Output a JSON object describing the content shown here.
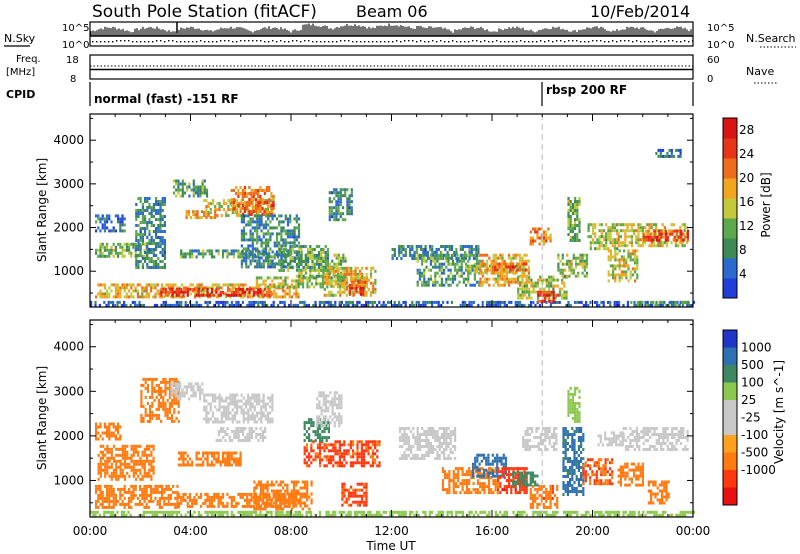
{
  "header": {
    "station": "South Pole Station (fitACF)",
    "beam": "Beam 06",
    "date": "10/Feb/2014"
  },
  "top_panels": {
    "nsky_label": "N.Sky",
    "nsky_top": "10^5",
    "nsky_bottom": "10^0",
    "nsearch_label": "N.Search",
    "nsearch_top": "10^5",
    "nsearch_bottom": "10^0",
    "freq_label_1": "Freq.",
    "freq_label_2": "[MHz]",
    "freq_top": "18",
    "freq_bottom": "8",
    "nave_label": "Nave",
    "nave_top": "60",
    "nave_bottom": "0",
    "cpid_label": "CPID",
    "cpid_1": "normal (fast) -151 RF",
    "cpid_2": "rbsp 200 RF"
  },
  "colors": {
    "power": [
      "#1f3fd8",
      "#2a6ad0",
      "#3e8a56",
      "#5ca84a",
      "#c4c93c",
      "#f2a51e",
      "#ef6d1a",
      "#e8351a",
      "#d91414"
    ],
    "velocity": [
      "#2036c8",
      "#2f70b0",
      "#3d8860",
      "#8bc850",
      "#c8c8c8",
      "#c8c8c8",
      "#ffa020",
      "#ff7a10",
      "#ff3810",
      "#e81010"
    ],
    "midline": "#c8c8c8"
  },
  "chart_data": [
    {
      "type": "heatmap",
      "name": "power",
      "xlabel": "Time UT",
      "ylabel": "Slant Range [km]",
      "xlim": [
        0,
        24
      ],
      "ylim": [
        180,
        4600
      ],
      "x_ticks": [
        "00:00",
        "04:00",
        "08:00",
        "12:00",
        "16:00",
        "20:00",
        "00:00"
      ],
      "y_ticks": [
        1000,
        2000,
        3000,
        4000
      ],
      "colorbar": {
        "label": "Power [dB]",
        "ticks": [
          4,
          8,
          12,
          16,
          20,
          24,
          28
        ],
        "range": [
          0,
          30
        ]
      },
      "cpid_change_hour": 18.0,
      "regions": [
        {
          "t": [
            0.0,
            24.0
          ],
          "r": [
            200,
            320
          ],
          "v": 4
        },
        {
          "t": [
            0.2,
            8.3
          ],
          "r": [
            420,
            720
          ],
          "v": 18
        },
        {
          "t": [
            2.8,
            7.2
          ],
          "r": [
            480,
            620
          ],
          "v": 26
        },
        {
          "t": [
            6.6,
            11.0
          ],
          "r": [
            640,
            880
          ],
          "v": 14
        },
        {
          "t": [
            8.2,
            10.2
          ],
          "r": [
            900,
            1400
          ],
          "v": 12
        },
        {
          "t": [
            9.3,
            11.4
          ],
          "r": [
            450,
            1100
          ],
          "v": 17
        },
        {
          "t": [
            10.3,
            11.0
          ],
          "r": [
            480,
            780
          ],
          "v": 24
        },
        {
          "t": [
            0.2,
            2.3
          ],
          "r": [
            1350,
            1650
          ],
          "v": 12
        },
        {
          "t": [
            0.2,
            1.4
          ],
          "r": [
            1900,
            2300
          ],
          "v": 6
        },
        {
          "t": [
            1.8,
            3.0
          ],
          "r": [
            1100,
            2700
          ],
          "v": 8
        },
        {
          "t": [
            3.3,
            4.7
          ],
          "r": [
            2700,
            3100
          ],
          "v": 10
        },
        {
          "t": [
            3.5,
            8.0
          ],
          "r": [
            1300,
            1500
          ],
          "v": 10
        },
        {
          "t": [
            4.5,
            7.3
          ],
          "r": [
            2250,
            2650
          ],
          "v": 16
        },
        {
          "t": [
            5.6,
            7.3
          ],
          "r": [
            2300,
            2950
          ],
          "v": 22
        },
        {
          "t": [
            3.8,
            5.0
          ],
          "r": [
            2200,
            2400
          ],
          "v": 18
        },
        {
          "t": [
            6.0,
            8.3
          ],
          "r": [
            1100,
            2300
          ],
          "v": 8
        },
        {
          "t": [
            7.5,
            9.5
          ],
          "r": [
            1000,
            1600
          ],
          "v": 10
        },
        {
          "t": [
            9.5,
            10.4
          ],
          "r": [
            2200,
            2900
          ],
          "v": 8
        },
        {
          "t": [
            12.0,
            15.5
          ],
          "r": [
            1300,
            1600
          ],
          "v": 8
        },
        {
          "t": [
            13.0,
            15.5
          ],
          "r": [
            700,
            1400
          ],
          "v": 10
        },
        {
          "t": [
            15.0,
            17.2
          ],
          "r": [
            950,
            1150
          ],
          "v": 14
        },
        {
          "t": [
            15.5,
            17.5
          ],
          "r": [
            700,
            1400
          ],
          "v": 18
        },
        {
          "t": [
            16.0,
            17.4
          ],
          "r": [
            1000,
            1200
          ],
          "v": 23
        },
        {
          "t": [
            17.0,
            19.0
          ],
          "r": [
            400,
            900
          ],
          "v": 14
        },
        {
          "t": [
            17.8,
            18.6
          ],
          "r": [
            300,
            550
          ],
          "v": 26
        },
        {
          "t": [
            17.5,
            18.3
          ],
          "r": [
            1600,
            2000
          ],
          "v": 20
        },
        {
          "t": [
            18.6,
            19.8
          ],
          "r": [
            900,
            1400
          ],
          "v": 14
        },
        {
          "t": [
            19.0,
            19.5
          ],
          "r": [
            1700,
            2700
          ],
          "v": 12
        },
        {
          "t": [
            19.8,
            21.0
          ],
          "r": [
            1500,
            2100
          ],
          "v": 14
        },
        {
          "t": [
            20.6,
            21.8
          ],
          "r": [
            800,
            1500
          ],
          "v": 16
        },
        {
          "t": [
            21.0,
            23.8
          ],
          "r": [
            1600,
            2100
          ],
          "v": 16
        },
        {
          "t": [
            22.0,
            23.8
          ],
          "r": [
            1700,
            1950
          ],
          "v": 24
        },
        {
          "t": [
            21.5,
            23.8
          ],
          "r": [
            200,
            320
          ],
          "v": 10
        },
        {
          "t": [
            22.5,
            23.5
          ],
          "r": [
            3600,
            3800
          ],
          "v": 5
        }
      ]
    },
    {
      "type": "heatmap",
      "name": "velocity",
      "xlabel": "Time UT",
      "ylabel": "Slant Range [km]",
      "xlim": [
        0,
        24
      ],
      "ylim": [
        180,
        4600
      ],
      "x_ticks": [
        "00:00",
        "04:00",
        "08:00",
        "12:00",
        "16:00",
        "20:00",
        "00:00"
      ],
      "y_ticks": [
        1000,
        2000,
        3000,
        4000
      ],
      "colorbar": {
        "label": "Velocity [m s^-1]",
        "ticks": [
          1000,
          500,
          100,
          25,
          -25,
          -100,
          -500,
          -1000
        ]
      },
      "cpid_change_hour": 18.0,
      "regions": [
        {
          "t": [
            0.0,
            24.0
          ],
          "r": [
            200,
            320
          ],
          "v": 40
        },
        {
          "t": [
            0.2,
            3.5
          ],
          "r": [
            400,
            900
          ],
          "v": -300
        },
        {
          "t": [
            0.3,
            2.5
          ],
          "r": [
            1000,
            1800
          ],
          "v": -200
        },
        {
          "t": [
            0.2,
            1.2
          ],
          "r": [
            1900,
            2300
          ],
          "v": -150
        },
        {
          "t": [
            2.0,
            3.5
          ],
          "r": [
            2300,
            3300
          ],
          "v": -200
        },
        {
          "t": [
            3.5,
            8.2
          ],
          "r": [
            400,
            720
          ],
          "v": -250
        },
        {
          "t": [
            6.5,
            8.8
          ],
          "r": [
            380,
            1000
          ],
          "v": -240
        },
        {
          "t": [
            3.2,
            4.5
          ],
          "r": [
            2800,
            3200
          ],
          "v": 0
        },
        {
          "t": [
            4.5,
            7.3
          ],
          "r": [
            2300,
            2950
          ],
          "v": 0
        },
        {
          "t": [
            5.0,
            7.0
          ],
          "r": [
            1900,
            2200
          ],
          "v": 0
        },
        {
          "t": [
            3.5,
            6.0
          ],
          "r": [
            1350,
            1650
          ],
          "v": -300
        },
        {
          "t": [
            8.5,
            11.5
          ],
          "r": [
            1300,
            1900
          ],
          "v": -600
        },
        {
          "t": [
            8.5,
            9.5
          ],
          "r": [
            1900,
            2400
          ],
          "v": 150
        },
        {
          "t": [
            10.0,
            11.0
          ],
          "r": [
            450,
            950
          ],
          "v": -600
        },
        {
          "t": [
            9.0,
            10.0
          ],
          "r": [
            2200,
            3000
          ],
          "v": 0
        },
        {
          "t": [
            12.3,
            14.5
          ],
          "r": [
            1500,
            2200
          ],
          "v": 0
        },
        {
          "t": [
            14.0,
            16.2
          ],
          "r": [
            700,
            1300
          ],
          "v": -300
        },
        {
          "t": [
            15.2,
            16.6
          ],
          "r": [
            1100,
            1600
          ],
          "v": 700
        },
        {
          "t": [
            16.2,
            17.4
          ],
          "r": [
            700,
            1300
          ],
          "v": -800
        },
        {
          "t": [
            16.8,
            17.8
          ],
          "r": [
            900,
            1200
          ],
          "v": 200
        },
        {
          "t": [
            17.2,
            18.6
          ],
          "r": [
            1700,
            2200
          ],
          "v": 0
        },
        {
          "t": [
            17.5,
            18.6
          ],
          "r": [
            400,
            900
          ],
          "v": -400
        },
        {
          "t": [
            18.8,
            19.6
          ],
          "r": [
            700,
            2200
          ],
          "v": 600
        },
        {
          "t": [
            19.0,
            19.5
          ],
          "r": [
            2300,
            3100
          ],
          "v": 60
        },
        {
          "t": [
            19.6,
            20.8
          ],
          "r": [
            900,
            1500
          ],
          "v": -500
        },
        {
          "t": [
            20.2,
            21.2
          ],
          "r": [
            1800,
            2100
          ],
          "v": 0
        },
        {
          "t": [
            21.2,
            23.8
          ],
          "r": [
            1700,
            2200
          ],
          "v": 0
        },
        {
          "t": [
            21.0,
            22.0
          ],
          "r": [
            900,
            1400
          ],
          "v": -300
        },
        {
          "t": [
            22.2,
            23.0
          ],
          "r": [
            500,
            1000
          ],
          "v": -150
        }
      ]
    }
  ]
}
